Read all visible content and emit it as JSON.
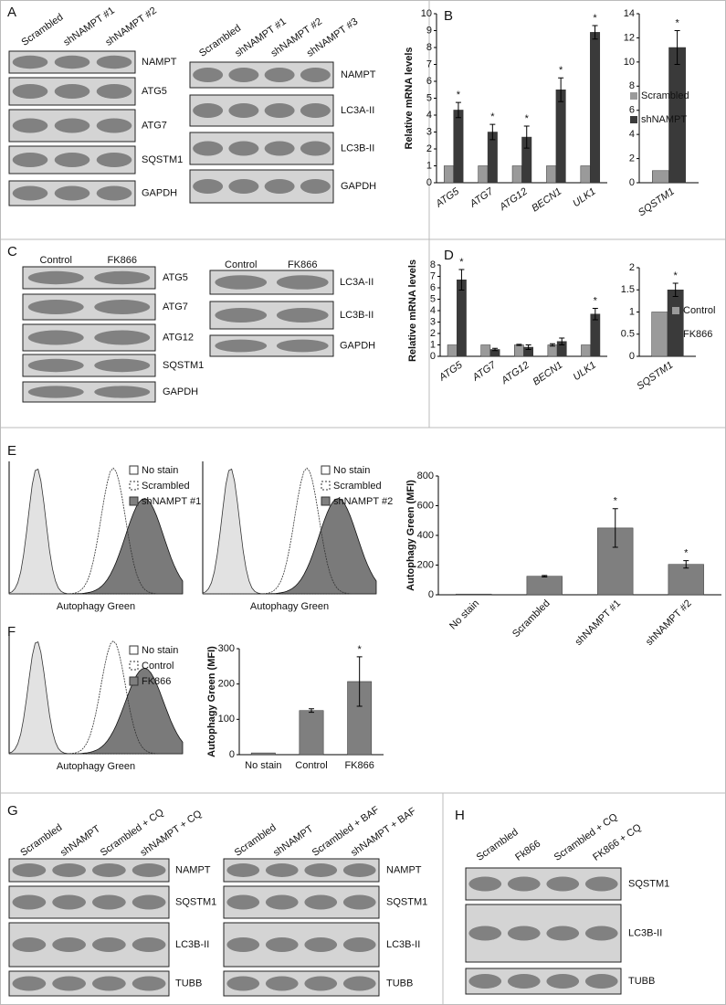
{
  "panel_labels": [
    "A",
    "B",
    "C",
    "D",
    "E",
    "F",
    "G",
    "H"
  ],
  "blots": [
    {
      "lanes": [
        "Scrambled",
        "shNAMPT #1",
        "shNAMPT #2"
      ],
      "bands": [
        "NAMPT",
        "ATG5",
        "ATG7",
        "SQSTM1",
        "GAPDH"
      ]
    },
    {
      "lanes": [
        "Scrambled",
        "shNAMPT #1",
        "shNAMPT #2",
        "shNAMPT #3"
      ],
      "bands": [
        "NAMPT",
        "LC3A-II",
        "LC3B-II",
        "GAPDH"
      ]
    },
    {
      "lanes": [
        "Control",
        "FK866"
      ],
      "bands": [
        "ATG5",
        "ATG7",
        "ATG12",
        "SQSTM1",
        "GAPDH"
      ]
    },
    {
      "lanes": [
        "Control",
        "FK866"
      ],
      "bands": [
        "LC3A-II",
        "LC3B-II",
        "GAPDH"
      ]
    },
    {
      "lanes": [
        "Scrambled",
        "shNAMPT",
        "Scrambled + CQ",
        "shNAMPT + CQ"
      ],
      "bands": [
        "NAMPT",
        "SQSTM1",
        "LC3B-II",
        "TUBB"
      ]
    },
    {
      "lanes": [
        "Scrambled",
        "shNAMPT",
        "Scrambled + BAF",
        "shNAMPT + BAF"
      ],
      "bands": [
        "NAMPT",
        "SQSTM1",
        "LC3B-II",
        "TUBB"
      ]
    },
    {
      "lanes": [
        "Scrambled",
        "Fk866",
        "Scrambled + CQ",
        "FK866 + CQ"
      ],
      "bands": [
        "SQSTM1",
        "LC3B-II",
        "TUBB"
      ]
    }
  ],
  "flow_panels": [
    {
      "legend": [
        "No stain",
        "Scrambled",
        "shNAMPT #1"
      ],
      "xlabel": "Autophagy Green"
    },
    {
      "legend": [
        "No stain",
        "Scrambled",
        "shNAMPT #2"
      ],
      "xlabel": "Autophagy Green"
    },
    {
      "legend": [
        "No stain",
        "Control",
        "FK866"
      ],
      "xlabel": "Autophagy Green"
    }
  ],
  "chart_data": [
    {
      "type": "bar",
      "ylabel": "Relative mRNA levels",
      "categories": [
        "ATG5",
        "ATG7",
        "ATG12",
        "BECN1",
        "ULK1"
      ],
      "series": [
        {
          "color": "#9a9a9a",
          "values": [
            1,
            1,
            1,
            1,
            1
          ]
        },
        {
          "color": "#3a3a3a",
          "values": [
            4.3,
            3.0,
            2.7,
            5.5,
            8.9
          ],
          "errors": [
            0.45,
            0.45,
            0.65,
            0.7,
            0.4
          ],
          "significance": [
            "*",
            "*",
            "*",
            "*",
            "*"
          ]
        }
      ],
      "ylim": [
        0,
        10
      ],
      "yticks": [
        0,
        1,
        2,
        3,
        4,
        5,
        6,
        7,
        8,
        9,
        10
      ]
    },
    {
      "type": "bar",
      "categories": [
        "SQSTM1"
      ],
      "legend": "right",
      "series": [
        {
          "name": "Scrambled",
          "color": "#9a9a9a",
          "values": [
            1
          ]
        },
        {
          "name": "shNAMPT",
          "color": "#3a3a3a",
          "values": [
            11.2
          ],
          "errors": [
            1.4
          ],
          "significance": [
            "*"
          ]
        }
      ],
      "ylim": [
        0,
        14
      ],
      "yticks": [
        0,
        2,
        4,
        6,
        8,
        10,
        12,
        14
      ]
    },
    {
      "type": "bar",
      "ylabel": "Relative mRNA levels",
      "categories": [
        "ATG5",
        "ATG7",
        "ATG12",
        "BECN1",
        "ULK1"
      ],
      "series": [
        {
          "color": "#9a9a9a",
          "values": [
            1,
            1,
            1,
            1,
            1
          ],
          "errors": [
            0,
            0,
            0.05,
            0.1,
            0
          ]
        },
        {
          "color": "#3a3a3a",
          "values": [
            6.7,
            0.6,
            0.8,
            1.3,
            3.7
          ],
          "errors": [
            0.9,
            0.1,
            0.2,
            0.3,
            0.5
          ],
          "significance": [
            "*",
            null,
            null,
            null,
            "*"
          ]
        }
      ],
      "ylim": [
        0,
        8
      ],
      "yticks": [
        0,
        1,
        2,
        3,
        4,
        5,
        6,
        7,
        8
      ]
    },
    {
      "type": "bar",
      "categories": [
        "SQSTM1"
      ],
      "legend": "right",
      "series": [
        {
          "name": "Control",
          "color": "#9a9a9a",
          "values": [
            1
          ]
        },
        {
          "name": "FK866",
          "color": "#3a3a3a",
          "values": [
            1.5
          ],
          "errors": [
            0.15
          ],
          "significance": [
            "*"
          ]
        }
      ],
      "ylim": [
        0,
        2
      ],
      "yticks": [
        0,
        0.5,
        1,
        1.5,
        2
      ]
    },
    {
      "type": "bar",
      "ylabel": "Autophagy Green (MFI)",
      "categories": [
        "No stain",
        "Scrambled",
        "shNAMPT #1",
        "shNAMPT #2"
      ],
      "series": [
        {
          "color": "#7f7f7f",
          "values": [
            5,
            125,
            450,
            205
          ],
          "errors": [
            0,
            5,
            130,
            25
          ],
          "significance": [
            null,
            null,
            "*",
            "*"
          ]
        }
      ],
      "ylim": [
        0,
        800
      ],
      "yticks": [
        0,
        200,
        400,
        600,
        800
      ]
    },
    {
      "type": "bar",
      "ylabel": "Autophagy Green (MFI)",
      "categories": [
        "No stain",
        "Control",
        "FK866"
      ],
      "series": [
        {
          "color": "#7f7f7f",
          "values": [
            5,
            125,
            207
          ],
          "errors": [
            0,
            5,
            70
          ],
          "significance": [
            null,
            null,
            "*"
          ]
        }
      ],
      "ylim": [
        0,
        300
      ],
      "yticks": [
        0,
        100,
        200,
        300
      ]
    }
  ]
}
